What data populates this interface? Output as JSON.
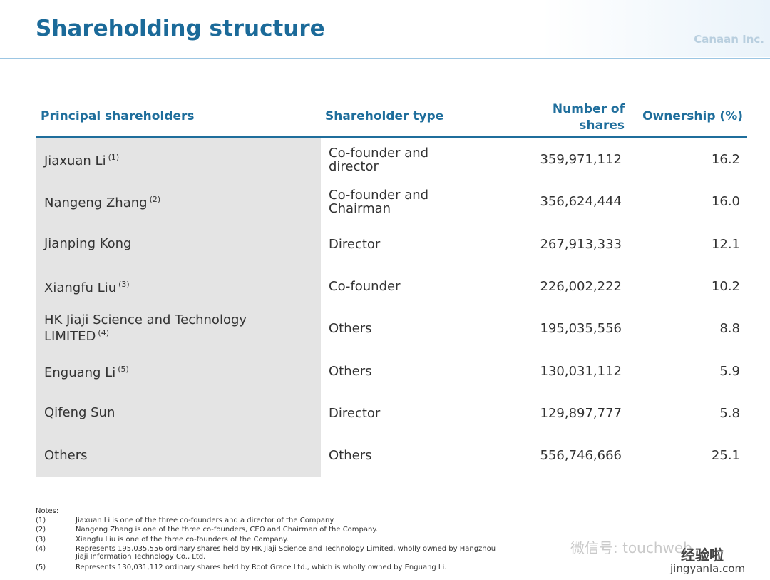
{
  "header": {
    "title": "Shareholding structure",
    "logo": "Canaan Inc."
  },
  "table": {
    "columns": [
      "Principal shareholders",
      "Shareholder type",
      "Number of shares",
      "Ownership (%)"
    ],
    "rows": [
      [
        "Jiaxuan Li",
        "(1)",
        "Co-founder and director",
        "359,971,112",
        "16.2"
      ],
      [
        "Nangeng Zhang",
        "(2)",
        "Co-founder and Chairman",
        "356,624,444",
        "16.0"
      ],
      [
        "Jianping Kong",
        "",
        "Director",
        "267,913,333",
        "12.1"
      ],
      [
        "Xiangfu Liu",
        "(3)",
        "Co-founder",
        "226,002,222",
        "10.2"
      ],
      [
        "HK Jiaji Science and Technology LIMITED",
        "(4)",
        "Others",
        "195,035,556",
        "8.8"
      ],
      [
        "Enguang Li",
        "(5)",
        "Others",
        "130,031,112",
        "5.9"
      ],
      [
        "Qifeng Sun",
        "",
        "Director",
        "129,897,777",
        "5.8"
      ],
      [
        "Others",
        "",
        "Others",
        "556,746,666",
        "25.1"
      ]
    ]
  },
  "notes": {
    "title": "Notes:",
    "items": [
      [
        "(1)",
        "Jiaxuan Li is one of the three co-founders and a director of the Company."
      ],
      [
        "(2)",
        "Nangeng Zhang is one of the three co-founders, CEO and Chairman of the Company."
      ],
      [
        "(3)",
        "Xiangfu Liu is one of the three co-founders of the Company."
      ],
      [
        "(4)",
        "Represents 195,035,556 ordinary shares held by HK Jiaji Science and Technology Limited, wholly owned by Hangzhou Jiaji Information Technology Co., Ltd."
      ],
      [
        "(5)",
        "Represents 130,031,112 ordinary shares held by Root Grace Ltd., which is wholly owned by Enguang Li."
      ]
    ]
  },
  "watermarks": [
    "微信号: touchweb",
    "经验啦",
    "jingyanla.com"
  ]
}
